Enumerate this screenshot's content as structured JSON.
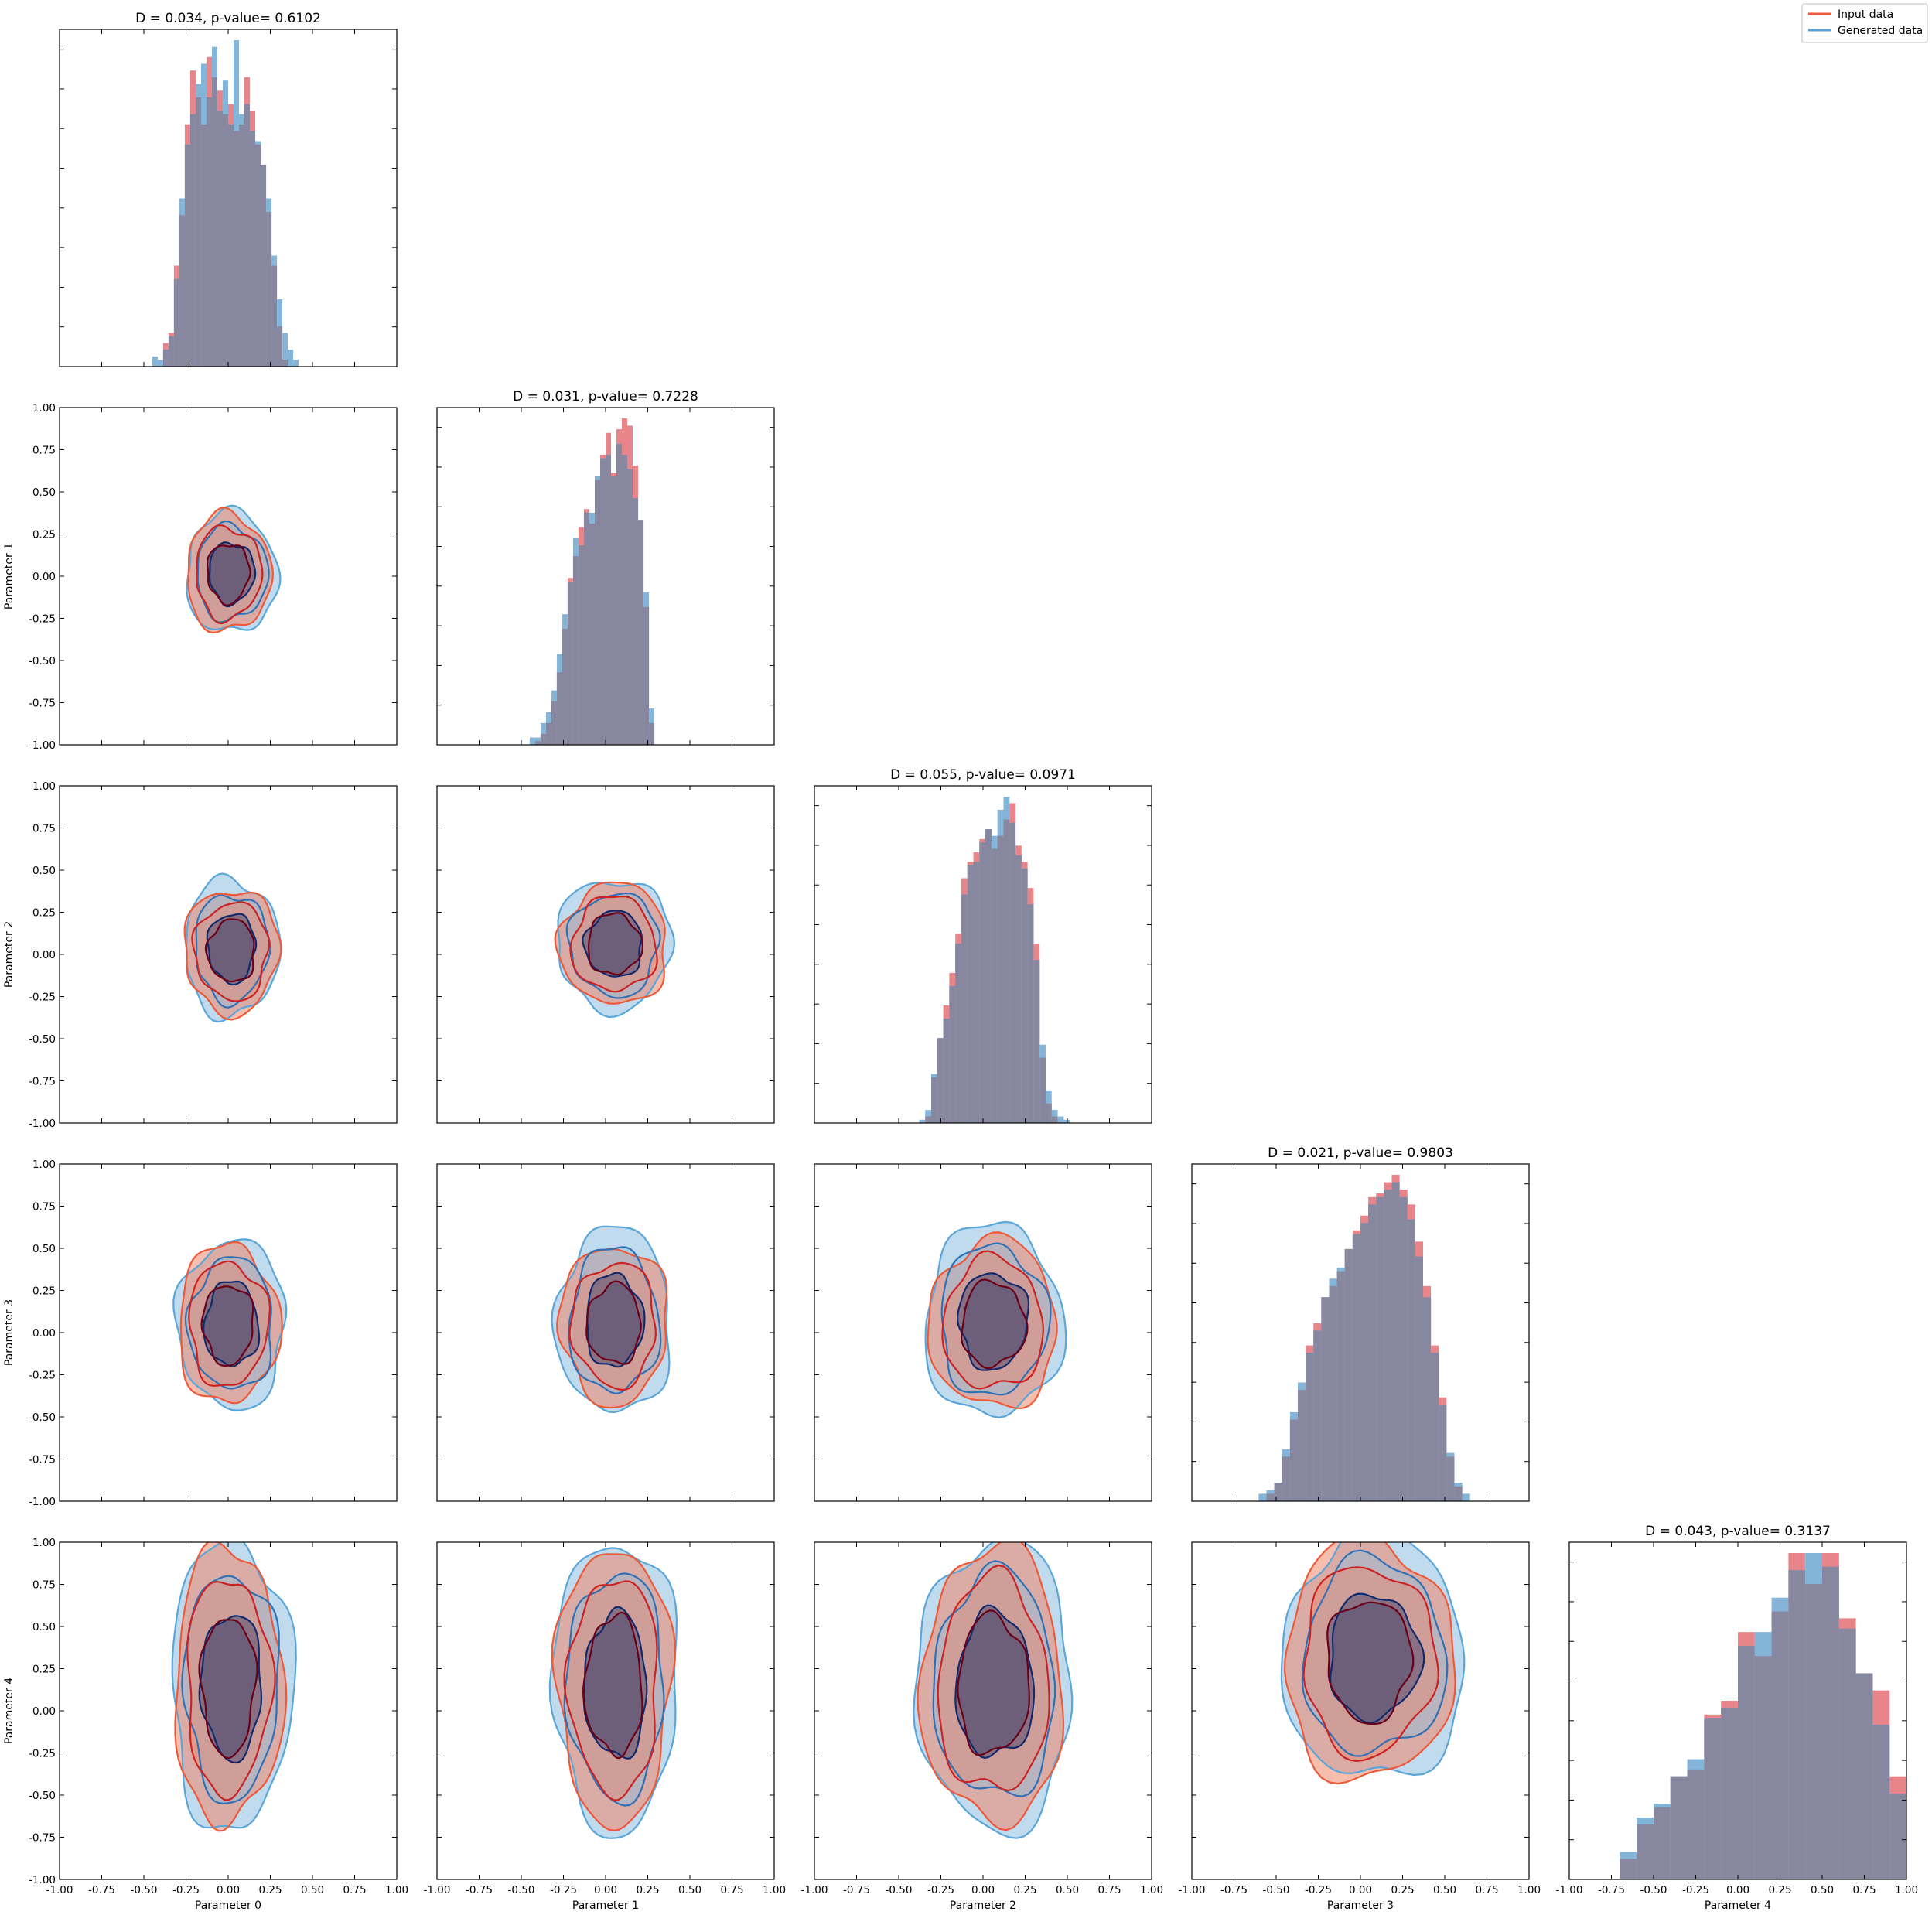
{
  "legend": {
    "items": [
      {
        "label": "Input data",
        "color": "#f05a3c"
      },
      {
        "label": "Generated data",
        "color": "#5aa0d2"
      }
    ]
  },
  "colors": {
    "input_hist": "#e8858a",
    "generated_hist": "#84b4d8",
    "overlap_hist": "#87879f",
    "input_fill": "#f0866a",
    "input_line_outer": "#ec5a3a",
    "input_line_mid": "#cc2222",
    "input_line_inner": "#6a0018",
    "generated_fill": "#8cbce0",
    "generated_line_outer": "#5aa6d8",
    "generated_line_mid": "#3070b4",
    "generated_line_inner": "#102a6c",
    "core_fill": "#5a5275"
  },
  "tick_values": [
    "-1.00",
    "-0.75",
    "-0.50",
    "-0.25",
    "0.00",
    "0.25",
    "0.50",
    "0.75",
    "1.00"
  ],
  "chart_data": {
    "type": "corner_plot",
    "parameters": [
      "Parameter 0",
      "Parameter 1",
      "Parameter 2",
      "Parameter 3",
      "Parameter 4"
    ],
    "axis_range": [
      -1.0,
      1.0
    ],
    "legend_position": "top-right",
    "diagonal": [
      {
        "title": "D = 0.034, p-value= 0.6102",
        "bins": 28,
        "bin_range": [
          -0.45,
          0.45
        ],
        "input": [
          0.0,
          0.0,
          0.07,
          0.1,
          0.3,
          0.45,
          0.72,
          0.88,
          0.8,
          0.72,
          0.92,
          0.86,
          0.82,
          0.75,
          0.78,
          0.7,
          0.72,
          0.86,
          0.76,
          0.66,
          0.6,
          0.46,
          0.3,
          0.12,
          0.02,
          0.0,
          0.0,
          0.0
        ],
        "generated": [
          0.03,
          0.02,
          0.05,
          0.09,
          0.26,
          0.5,
          0.66,
          0.75,
          0.84,
          0.9,
          0.8,
          0.95,
          0.76,
          0.85,
          0.72,
          0.97,
          0.75,
          0.78,
          0.7,
          0.67,
          0.6,
          0.5,
          0.33,
          0.2,
          0.1,
          0.05,
          0.02,
          0.0
        ]
      },
      {
        "title": "D = 0.031, p-value= 0.7228",
        "bins": 28,
        "bin_range": [
          -0.45,
          0.45
        ],
        "input": [
          0.0,
          0.01,
          0.03,
          0.06,
          0.12,
          0.2,
          0.32,
          0.46,
          0.52,
          0.6,
          0.65,
          0.61,
          0.73,
          0.8,
          0.86,
          0.75,
          0.87,
          0.9,
          0.88,
          0.77,
          0.62,
          0.38,
          0.06,
          0.0,
          0.0,
          0.0,
          0.0,
          0.0
        ],
        "generated": [
          0.02,
          0.02,
          0.06,
          0.09,
          0.15,
          0.25,
          0.36,
          0.45,
          0.57,
          0.55,
          0.64,
          0.64,
          0.74,
          0.79,
          0.8,
          0.74,
          0.83,
          0.8,
          0.76,
          0.68,
          0.62,
          0.42,
          0.1,
          0.0,
          0.0,
          0.0,
          0.0,
          0.0
        ]
      },
      {
        "title": "D = 0.055, p-value= 0.0971",
        "bins": 28,
        "bin_range": [
          -0.45,
          0.55
        ],
        "input": [
          0.0,
          0.0,
          0.0,
          0.02,
          0.14,
          0.26,
          0.36,
          0.46,
          0.58,
          0.75,
          0.8,
          0.83,
          0.87,
          0.9,
          0.84,
          0.88,
          0.93,
          0.98,
          0.85,
          0.8,
          0.72,
          0.55,
          0.2,
          0.06,
          0.02,
          0.0,
          0.0,
          0.0
        ],
        "generated": [
          0.0,
          0.0,
          0.01,
          0.04,
          0.15,
          0.26,
          0.32,
          0.42,
          0.55,
          0.7,
          0.79,
          0.8,
          0.86,
          0.9,
          0.88,
          0.96,
          1.0,
          0.92,
          0.82,
          0.78,
          0.67,
          0.5,
          0.24,
          0.1,
          0.04,
          0.02,
          0.01,
          0.0
        ]
      },
      {
        "title": "D = 0.021, p-value= 0.9803",
        "bins": 28,
        "bin_range": [
          -0.65,
          0.65
        ],
        "input": [
          0.0,
          0.0,
          0.02,
          0.05,
          0.12,
          0.22,
          0.3,
          0.42,
          0.48,
          0.55,
          0.58,
          0.62,
          0.68,
          0.73,
          0.77,
          0.82,
          0.83,
          0.86,
          0.88,
          0.84,
          0.8,
          0.7,
          0.58,
          0.42,
          0.28,
          0.12,
          0.04,
          0.0
        ],
        "generated": [
          0.0,
          0.02,
          0.03,
          0.05,
          0.14,
          0.24,
          0.32,
          0.4,
          0.46,
          0.55,
          0.6,
          0.63,
          0.68,
          0.72,
          0.75,
          0.8,
          0.82,
          0.84,
          0.86,
          0.82,
          0.76,
          0.66,
          0.55,
          0.4,
          0.26,
          0.13,
          0.05,
          0.02
        ]
      },
      {
        "title": "D = 0.043, p-value= 0.3137",
        "bins": 18,
        "bin_range": [
          -0.8,
          1.0
        ],
        "input": [
          0.0,
          0.06,
          0.16,
          0.21,
          0.3,
          0.32,
          0.48,
          0.52,
          0.72,
          0.65,
          0.78,
          0.95,
          0.86,
          0.95,
          0.76,
          0.6,
          0.55,
          0.3
        ],
        "generated": [
          0.0,
          0.08,
          0.18,
          0.22,
          0.3,
          0.35,
          0.47,
          0.5,
          0.68,
          0.72,
          0.82,
          0.9,
          0.95,
          0.91,
          0.73,
          0.6,
          0.45,
          0.25
        ]
      }
    ],
    "contours": [
      {
        "x": "Parameter 0",
        "y": "Parameter 1",
        "input": {
          "center": [
            0.0,
            0.02
          ],
          "spread": [
            0.25,
            0.35
          ],
          "grid_steps": 40
        },
        "generated": {
          "center": [
            0.02,
            0.02
          ],
          "spread": [
            0.27,
            0.36
          ],
          "grid_steps": 40
        }
      },
      {
        "x": "Parameter 0",
        "y": "Parameter 2",
        "input": {
          "center": [
            0.02,
            0.02
          ],
          "spread": [
            0.28,
            0.37
          ],
          "grid_steps": 40
        },
        "generated": {
          "center": [
            0.02,
            0.04
          ],
          "spread": [
            0.28,
            0.41
          ],
          "grid_steps": 40
        }
      },
      {
        "x": "Parameter 1",
        "y": "Parameter 2",
        "input": {
          "center": [
            0.05,
            0.06
          ],
          "spread": [
            0.32,
            0.36
          ],
          "grid_steps": 40
        },
        "generated": {
          "center": [
            0.05,
            0.06
          ],
          "spread": [
            0.34,
            0.39
          ],
          "grid_steps": 40
        }
      },
      {
        "x": "Parameter 0",
        "y": "Parameter 3",
        "input": {
          "center": [
            0.0,
            0.05
          ],
          "spread": [
            0.3,
            0.47
          ],
          "grid_steps": 40
        },
        "generated": {
          "center": [
            0.02,
            0.05
          ],
          "spread": [
            0.32,
            0.5
          ],
          "grid_steps": 40
        }
      },
      {
        "x": "Parameter 1",
        "y": "Parameter 3",
        "input": {
          "center": [
            0.05,
            0.05
          ],
          "spread": [
            0.32,
            0.47
          ],
          "grid_steps": 40
        },
        "generated": {
          "center": [
            0.05,
            0.07
          ],
          "spread": [
            0.34,
            0.55
          ],
          "grid_steps": 40
        }
      },
      {
        "x": "Parameter 2",
        "y": "Parameter 3",
        "input": {
          "center": [
            0.06,
            0.05
          ],
          "spread": [
            0.38,
            0.5
          ],
          "grid_steps": 40
        },
        "generated": {
          "center": [
            0.06,
            0.07
          ],
          "spread": [
            0.41,
            0.57
          ],
          "grid_steps": 40
        }
      },
      {
        "x": "Parameter 0",
        "y": "Parameter 4",
        "input": {
          "center": [
            0.0,
            0.15
          ],
          "spread": [
            0.32,
            0.82
          ],
          "grid_steps": 40
        },
        "generated": {
          "center": [
            0.02,
            0.15
          ],
          "spread": [
            0.36,
            0.86
          ],
          "grid_steps": 40
        }
      },
      {
        "x": "Parameter 1",
        "y": "Parameter 4",
        "input": {
          "center": [
            0.05,
            0.15
          ],
          "spread": [
            0.34,
            0.82
          ],
          "grid_steps": 40
        },
        "generated": {
          "center": [
            0.06,
            0.15
          ],
          "spread": [
            0.37,
            0.86
          ],
          "grid_steps": 40
        }
      },
      {
        "x": "Parameter 2",
        "y": "Parameter 4",
        "input": {
          "center": [
            0.06,
            0.15
          ],
          "spread": [
            0.42,
            0.82
          ],
          "grid_steps": 40
        },
        "generated": {
          "center": [
            0.07,
            0.15
          ],
          "spread": [
            0.46,
            0.86
          ],
          "grid_steps": 40
        }
      },
      {
        "x": "Parameter 3",
        "y": "Parameter 4",
        "input": {
          "center": [
            0.05,
            0.3
          ],
          "spread": [
            0.5,
            0.72
          ],
          "grid_steps": 40
        },
        "generated": {
          "center": [
            0.08,
            0.32
          ],
          "spread": [
            0.54,
            0.74
          ],
          "grid_steps": 40
        }
      }
    ]
  }
}
